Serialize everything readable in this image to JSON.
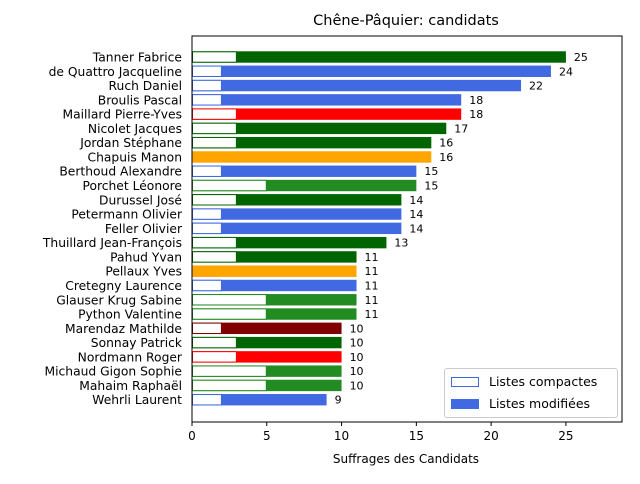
{
  "chart_data": {
    "type": "bar",
    "orientation": "horizontal",
    "title": "Chêne-Pâquier: candidats",
    "xlabel": "Suffrages des Candidats",
    "ylabel": "",
    "xlim": [
      0,
      28.75
    ],
    "xticks": [
      0,
      5,
      10,
      15,
      20,
      25
    ],
    "grid": false,
    "legend_position": "lower right",
    "legend": [
      {
        "label": "Listes compactes",
        "style": "outline"
      },
      {
        "label": "Listes modifiées",
        "style": "filled"
      }
    ],
    "colors": {
      "darkgreen": "#006400",
      "green": "#228b22",
      "blue": "#4169e1",
      "red": "#ff0000",
      "orange": "#ffa500",
      "darkred": "#800000"
    },
    "candidates": [
      {
        "name": "Tanner Fabrice",
        "total": 25,
        "compact": 3,
        "color": "#006400"
      },
      {
        "name": "de Quattro Jacqueline",
        "total": 24,
        "compact": 2,
        "color": "#4169e1"
      },
      {
        "name": "Ruch Daniel",
        "total": 22,
        "compact": 2,
        "color": "#4169e1"
      },
      {
        "name": "Broulis Pascal",
        "total": 18,
        "compact": 2,
        "color": "#4169e1"
      },
      {
        "name": "Maillard Pierre-Yves",
        "total": 18,
        "compact": 3,
        "color": "#ff0000"
      },
      {
        "name": "Nicolet Jacques",
        "total": 17,
        "compact": 3,
        "color": "#006400"
      },
      {
        "name": "Jordan Stéphane",
        "total": 16,
        "compact": 3,
        "color": "#006400"
      },
      {
        "name": "Chapuis Manon",
        "total": 16,
        "compact": 0,
        "color": "#ffa500"
      },
      {
        "name": "Berthoud Alexandre",
        "total": 15,
        "compact": 2,
        "color": "#4169e1"
      },
      {
        "name": "Porchet Léonore",
        "total": 15,
        "compact": 5,
        "color": "#228b22"
      },
      {
        "name": "Durussel José",
        "total": 14,
        "compact": 3,
        "color": "#006400"
      },
      {
        "name": "Petermann Olivier",
        "total": 14,
        "compact": 2,
        "color": "#4169e1"
      },
      {
        "name": "Feller Olivier",
        "total": 14,
        "compact": 2,
        "color": "#4169e1"
      },
      {
        "name": "Thuillard Jean-François",
        "total": 13,
        "compact": 3,
        "color": "#006400"
      },
      {
        "name": "Pahud Yvan",
        "total": 11,
        "compact": 3,
        "color": "#006400"
      },
      {
        "name": "Pellaux Yves",
        "total": 11,
        "compact": 0,
        "color": "#ffa500"
      },
      {
        "name": "Cretegny Laurence",
        "total": 11,
        "compact": 2,
        "color": "#4169e1"
      },
      {
        "name": "Glauser Krug Sabine",
        "total": 11,
        "compact": 5,
        "color": "#228b22"
      },
      {
        "name": "Python Valentine",
        "total": 11,
        "compact": 5,
        "color": "#228b22"
      },
      {
        "name": "Marendaz Mathilde",
        "total": 10,
        "compact": 2,
        "color": "#800000"
      },
      {
        "name": "Sonnay Patrick",
        "total": 10,
        "compact": 3,
        "color": "#006400"
      },
      {
        "name": "Nordmann Roger",
        "total": 10,
        "compact": 3,
        "color": "#ff0000"
      },
      {
        "name": "Michaud Gigon Sophie",
        "total": 10,
        "compact": 5,
        "color": "#228b22"
      },
      {
        "name": "Mahaim Raphaël",
        "total": 10,
        "compact": 5,
        "color": "#228b22"
      },
      {
        "name": "Wehrli Laurent",
        "total": 9,
        "compact": 2,
        "color": "#4169e1"
      }
    ]
  }
}
